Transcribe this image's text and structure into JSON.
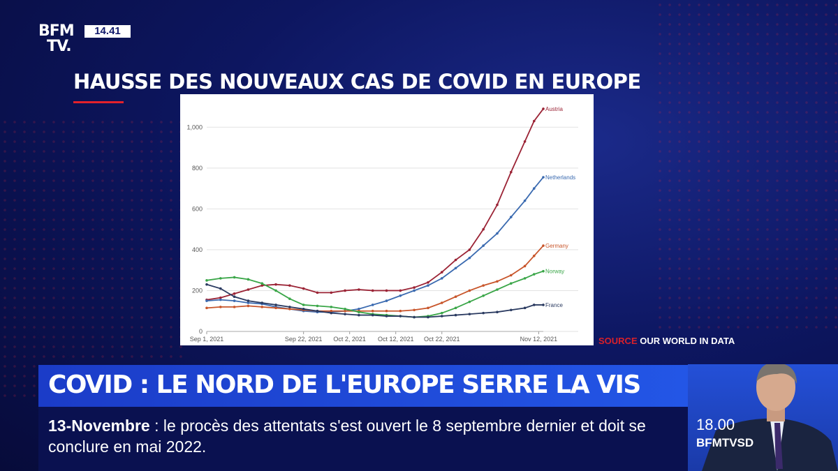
{
  "channel": {
    "logo_line1": "BFM",
    "logo_line2": "TV.",
    "clock": "14.41"
  },
  "title": "HAUSSE DES NOUVEAUX CAS DE COVID EN EUROPE",
  "source": {
    "label": "SOURCE",
    "name": "OUR WORLD IN DATA"
  },
  "headline": "COVID : LE NORD DE L'EUROPE SERRE LA VIS",
  "ticker": {
    "tag": "13-Novembre",
    "separator": " : ",
    "text": "le procès des attentats s'est ouvert le 8 septembre dernier et doit se conclure en mai 2022."
  },
  "show": {
    "time": "18.00",
    "name": "BFMTVSD"
  },
  "chart_data": {
    "type": "line",
    "title": "",
    "xlabel": "",
    "ylabel": "",
    "ylim": [
      0,
      1100
    ],
    "yticks": [
      "0",
      "200",
      "400",
      "600",
      "800",
      "1,000"
    ],
    "ytick_values": [
      0,
      200,
      400,
      600,
      800,
      1000
    ],
    "xticks": [
      "Sep 1, 2021",
      "Sep 22, 2021",
      "Oct 2, 2021",
      "Oct 12, 2021",
      "Oct 22, 2021",
      "Nov 12, 2021"
    ],
    "xtick_days": [
      0,
      21,
      31,
      41,
      51,
      72
    ],
    "x_domain_days": [
      0,
      73
    ],
    "grid": true,
    "legend": "labels at line ends",
    "series": [
      {
        "name": "Austria",
        "color": "#9b2335",
        "x": [
          0,
          3,
          6,
          9,
          12,
          15,
          18,
          21,
          24,
          27,
          30,
          33,
          36,
          39,
          42,
          45,
          48,
          51,
          54,
          57,
          60,
          63,
          66,
          69,
          71,
          73
        ],
        "values": [
          155,
          165,
          185,
          205,
          225,
          230,
          225,
          210,
          190,
          190,
          200,
          205,
          200,
          200,
          200,
          215,
          240,
          290,
          350,
          400,
          500,
          620,
          780,
          930,
          1030,
          1090
        ]
      },
      {
        "name": "Netherlands",
        "color": "#3a6ab0",
        "x": [
          0,
          3,
          6,
          9,
          12,
          15,
          18,
          21,
          24,
          27,
          30,
          33,
          36,
          39,
          42,
          45,
          48,
          51,
          54,
          57,
          60,
          63,
          66,
          69,
          71,
          73
        ],
        "values": [
          150,
          155,
          150,
          140,
          135,
          120,
          110,
          100,
          95,
          95,
          100,
          110,
          130,
          150,
          175,
          200,
          225,
          260,
          310,
          360,
          420,
          480,
          560,
          640,
          700,
          755
        ]
      },
      {
        "name": "Germany",
        "color": "#c8552a",
        "x": [
          0,
          3,
          6,
          9,
          12,
          15,
          18,
          21,
          24,
          27,
          30,
          33,
          36,
          39,
          42,
          45,
          48,
          51,
          54,
          57,
          60,
          63,
          66,
          69,
          71,
          73
        ],
        "values": [
          115,
          120,
          120,
          125,
          120,
          115,
          110,
          105,
          100,
          100,
          100,
          100,
          100,
          100,
          100,
          105,
          115,
          140,
          170,
          200,
          225,
          245,
          275,
          320,
          370,
          420
        ]
      },
      {
        "name": "Norway",
        "color": "#3aa648",
        "x": [
          0,
          3,
          6,
          9,
          12,
          15,
          18,
          21,
          24,
          27,
          30,
          33,
          36,
          39,
          42,
          45,
          48,
          51,
          54,
          57,
          60,
          63,
          66,
          69,
          71,
          73
        ],
        "values": [
          250,
          260,
          265,
          255,
          235,
          200,
          160,
          130,
          125,
          120,
          110,
          95,
          85,
          80,
          75,
          70,
          75,
          90,
          115,
          145,
          175,
          205,
          235,
          260,
          280,
          295
        ]
      },
      {
        "name": "France",
        "color": "#2a3a60",
        "x": [
          0,
          3,
          6,
          9,
          12,
          15,
          18,
          21,
          24,
          27,
          30,
          33,
          36,
          39,
          42,
          45,
          48,
          51,
          54,
          57,
          60,
          63,
          66,
          69,
          71,
          73
        ],
        "values": [
          230,
          210,
          170,
          150,
          140,
          130,
          120,
          110,
          100,
          90,
          85,
          80,
          80,
          75,
          75,
          70,
          70,
          75,
          80,
          85,
          90,
          95,
          105,
          115,
          130,
          130
        ]
      }
    ]
  }
}
